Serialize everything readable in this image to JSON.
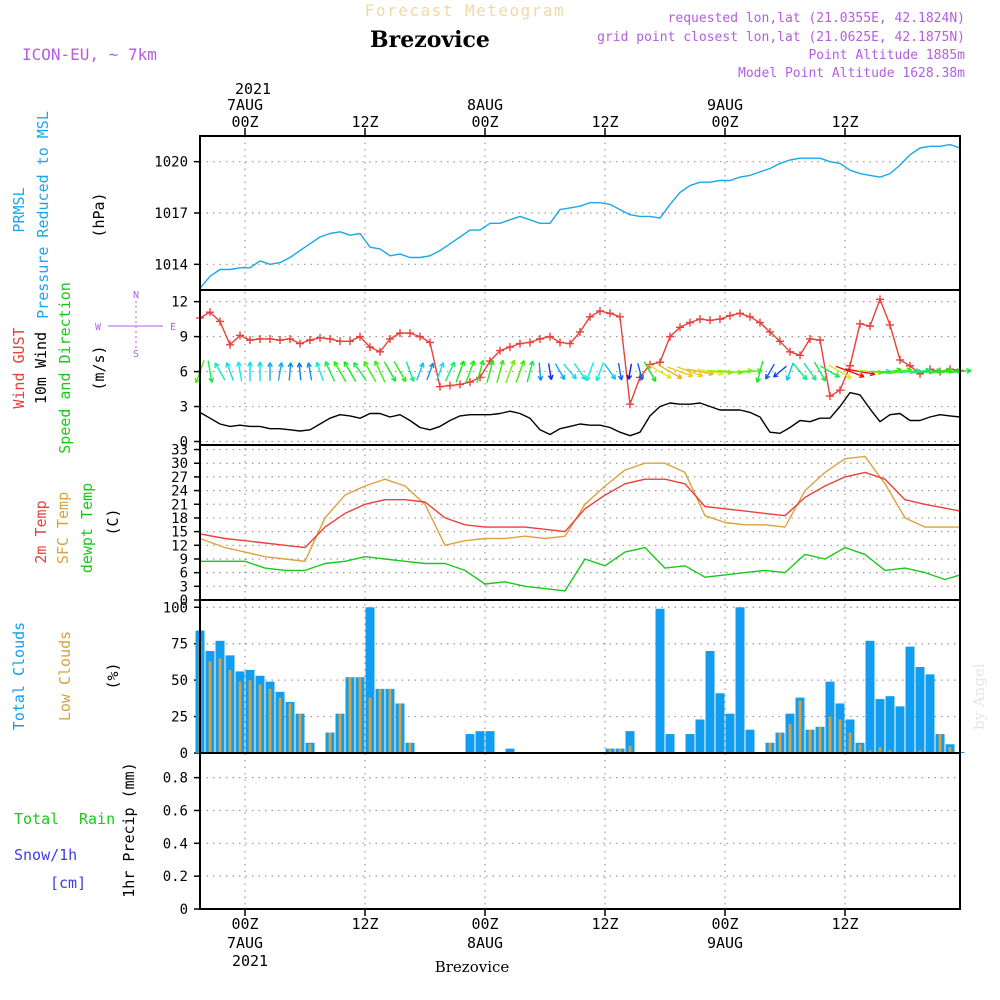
{
  "header": {
    "title": "Forecast Meteogram",
    "station": "Brezovice",
    "model": "ICON-EU, ~ 7km",
    "requested": "requested lon,lat (21.0355E, 42.1824N)",
    "grid_point": "grid point closest lon,lat (21.0625E, 42.1875N)",
    "point_altitude": "Point Altitude 1885m",
    "model_altitude": "Model Point Altitude 1628.38m",
    "footer_station": "Brezovice",
    "watermark": "by Angel",
    "top_year": "2021",
    "bottom_year": "2021"
  },
  "colors": {
    "pressure": "#19a7ea",
    "gust": "#e8413c",
    "wind": "#000000",
    "direction": "#19c919",
    "temp": "#e8413c",
    "sfc": "#dca23c",
    "dew": "#19c919",
    "total_clouds": "#119ef0",
    "low_clouds": "#d8a03e",
    "rain": "#19c919",
    "snow": "#3c3cea",
    "purple": "#b35ee0",
    "grid": "#999999"
  },
  "time_axis": {
    "top_ticks": [
      {
        "t": 0,
        "day": "7AUG",
        "hour": "00Z"
      },
      {
        "t": 12,
        "day": "",
        "hour": "12Z"
      },
      {
        "t": 24,
        "day": "8AUG",
        "hour": "00Z"
      },
      {
        "t": 36,
        "day": "",
        "hour": "12Z"
      },
      {
        "t": 48,
        "day": "9AUG",
        "hour": "00Z"
      },
      {
        "t": 60,
        "day": "",
        "hour": "12Z"
      }
    ],
    "bottom_ticks": [
      {
        "t": 0,
        "hour": "00Z",
        "day": "7AUG"
      },
      {
        "t": 12,
        "hour": "12Z",
        "day": ""
      },
      {
        "t": 24,
        "hour": "00Z",
        "day": "8AUG"
      },
      {
        "t": 36,
        "hour": "12Z",
        "day": ""
      },
      {
        "t": 48,
        "hour": "00Z",
        "day": "9AUG"
      },
      {
        "t": 60,
        "hour": "12Z",
        "day": ""
      }
    ]
  },
  "panels": {
    "pressure": {
      "label1": "PRMSL",
      "label2": "Pressure Reduced to MSL",
      "unit": "(hPa)",
      "ticks": [
        "1014",
        "1017",
        "1020"
      ]
    },
    "wind": {
      "label_gust": "Wind GUST",
      "label_wind": "10m Wind",
      "label_dir": "Speed and Direction",
      "unit": "(m/s)",
      "compass": {
        "n": "N",
        "s": "S",
        "w": "W",
        "e": "E"
      },
      "ticks": [
        "0",
        "3",
        "6",
        "9",
        "12"
      ]
    },
    "temp": {
      "label_temp": "2m Temp",
      "label_sfc": "SFC Temp",
      "label_dew": "dewpt Temp",
      "unit": "(C)",
      "ticks": [
        "0",
        "3",
        "6",
        "9",
        "12",
        "15",
        "18",
        "21",
        "24",
        "27",
        "30",
        "33"
      ]
    },
    "clouds": {
      "label_total": "Total Clouds",
      "label_low": "Low Clouds",
      "unit": "(%)",
      "ticks": [
        "0",
        "25",
        "50",
        "75",
        "100"
      ]
    },
    "precip": {
      "label_total": "Total",
      "label_rain": "Rain",
      "label_snow": "Snow/1h",
      "label_cm": "[cm]",
      "unit": "1hr Precip (mm)",
      "ticks": [
        "0",
        "0.2",
        "0.4",
        "0.6",
        "0.8"
      ]
    }
  },
  "chart_data": {
    "type": "line",
    "time_unit": "hours since 2021-08-07 00Z",
    "xlim": [
      -4.5,
      71.5
    ],
    "title": "Forecast Meteogram",
    "pressure": {
      "name": "PRMSL",
      "ylim": [
        1012.5,
        1021.5
      ],
      "t": [
        -4.5,
        -3.5,
        -2.5,
        -1.5,
        -0.5,
        0.5,
        1.5,
        2.5,
        3.5,
        4.5,
        5.5,
        6.5,
        7.5,
        8.5,
        9.5,
        10.5,
        11.5,
        12.5,
        13.5,
        14.5,
        15.5,
        16.5,
        17.5,
        18.5,
        19.5,
        20.5,
        21.5,
        22.5,
        23.5,
        24.5,
        25.5,
        26.5,
        27.5,
        28.5,
        29.5,
        30.5,
        31.5,
        32.5,
        33.5,
        34.5,
        35.5,
        36.5,
        37.5,
        38.5,
        39.5,
        40.5,
        41.5,
        42.5,
        43.5,
        44.5,
        45.5,
        46.5,
        47.5,
        48.5,
        49.5,
        50.5,
        51.5,
        52.5,
        53.5,
        54.5,
        55.5,
        56.5,
        57.5,
        58.5,
        59.5,
        60.5,
        61.5,
        62.5,
        63.5,
        64.5,
        65.5,
        66.5,
        67.5,
        68.5,
        69.5,
        70.5,
        71.5
      ],
      "values": [
        1012.6,
        1013.3,
        1013.7,
        1013.7,
        1013.8,
        1013.8,
        1014.2,
        1014.0,
        1014.1,
        1014.4,
        1014.8,
        1015.2,
        1015.6,
        1015.8,
        1015.9,
        1015.7,
        1015.8,
        1015.0,
        1014.9,
        1014.5,
        1014.6,
        1014.4,
        1014.4,
        1014.5,
        1014.8,
        1015.2,
        1015.6,
        1016.0,
        1016.0,
        1016.4,
        1016.4,
        1016.6,
        1016.8,
        1016.6,
        1016.4,
        1016.4,
        1017.2,
        1017.3,
        1017.4,
        1017.6,
        1017.6,
        1017.5,
        1017.2,
        1016.9,
        1016.8,
        1016.8,
        1016.7,
        1017.5,
        1018.2,
        1018.6,
        1018.8,
        1018.8,
        1018.9,
        1018.9,
        1019.1,
        1019.2,
        1019.4,
        1019.6,
        1019.9,
        1020.1,
        1020.2,
        1020.2,
        1020.2,
        1020.0,
        1019.9,
        1019.5,
        1019.3,
        1019.2,
        1019.1,
        1019.3,
        1019.8,
        1020.4,
        1020.8,
        1020.9,
        1020.9,
        1021.0,
        1020.8
      ]
    },
    "gust": {
      "name": "Wind GUST",
      "unit": "m/s",
      "ylim": [
        -0.3,
        13
      ],
      "t": [
        -4.5,
        -3.5,
        -2.5,
        -1.5,
        -0.5,
        0.5,
        1.5,
        2.5,
        3.5,
        4.5,
        5.5,
        6.5,
        7.5,
        8.5,
        9.5,
        10.5,
        11.5,
        12.5,
        13.5,
        14.5,
        15.5,
        16.5,
        17.5,
        18.5,
        19.5,
        20.5,
        21.5,
        22.5,
        23.5,
        24.5,
        25.5,
        26.5,
        27.5,
        28.5,
        29.5,
        30.5,
        31.5,
        32.5,
        33.5,
        34.5,
        35.5,
        36.5,
        37.5,
        38.5,
        39.5,
        40.5,
        41.5,
        42.5,
        43.5,
        44.5,
        45.5,
        46.5,
        47.5,
        48.5,
        49.5,
        50.5,
        51.5,
        52.5,
        53.5,
        54.5,
        55.5,
        56.5,
        57.5,
        58.5,
        59.5,
        60.5,
        61.5,
        62.5,
        63.5,
        64.5,
        65.5,
        66.5,
        67.5,
        68.5,
        69.5,
        70.5,
        71.5
      ],
      "values": [
        10.6,
        11.1,
        10.3,
        8.3,
        9.1,
        8.7,
        8.8,
        8.8,
        8.7,
        8.8,
        8.4,
        8.7,
        8.9,
        8.8,
        8.6,
        8.6,
        9.0,
        8.1,
        7.7,
        8.8,
        9.3,
        9.3,
        9.0,
        8.5,
        4.7,
        4.8,
        4.9,
        5.1,
        5.5,
        6.9,
        7.8,
        8.1,
        8.4,
        8.5,
        8.8,
        9.0,
        8.5,
        8.4,
        9.4,
        10.7,
        11.2,
        11.0,
        10.7,
        3.2,
        5.5,
        6.6,
        6.8,
        9.0,
        9.8,
        10.2,
        10.5,
        10.4,
        10.5,
        10.8,
        11.0,
        10.7,
        10.2,
        9.4,
        8.6,
        7.7,
        7.4,
        8.8,
        8.7,
        3.9,
        4.4,
        6.5,
        10.1,
        9.9,
        12.2,
        10.0,
        7.0,
        6.5,
        5.8,
        6.2,
        6.0,
        6.2,
        6.1
      ]
    },
    "wind_speed": {
      "name": "10m Wind",
      "unit": "m/s",
      "t": [
        -4.5,
        -3.5,
        -2.5,
        -1.5,
        -0.5,
        0.5,
        1.5,
        2.5,
        3.5,
        4.5,
        5.5,
        6.5,
        7.5,
        8.5,
        9.5,
        10.5,
        11.5,
        12.5,
        13.5,
        14.5,
        15.5,
        16.5,
        17.5,
        18.5,
        19.5,
        20.5,
        21.5,
        22.5,
        23.5,
        24.5,
        25.5,
        26.5,
        27.5,
        28.5,
        29.5,
        30.5,
        31.5,
        32.5,
        33.5,
        34.5,
        35.5,
        36.5,
        37.5,
        38.5,
        39.5,
        40.5,
        41.5,
        42.5,
        43.5,
        44.5,
        45.5,
        46.5,
        47.5,
        48.5,
        49.5,
        50.5,
        51.5,
        52.5,
        53.5,
        54.5,
        55.5,
        56.5,
        57.5,
        58.5,
        59.5,
        60.5,
        61.5,
        62.5,
        63.5,
        64.5,
        65.5,
        66.5,
        67.5,
        68.5,
        69.5,
        70.5,
        71.5
      ],
      "values": [
        2.5,
        2.0,
        1.5,
        1.3,
        1.4,
        1.3,
        1.3,
        1.1,
        1.1,
        1.0,
        0.9,
        1.0,
        1.5,
        2.0,
        2.3,
        2.2,
        2.0,
        2.4,
        2.4,
        2.1,
        2.3,
        1.8,
        1.2,
        1.0,
        1.3,
        1.8,
        2.2,
        2.3,
        2.3,
        2.3,
        2.4,
        2.6,
        2.4,
        2.0,
        1.0,
        0.6,
        1.1,
        1.3,
        1.5,
        1.4,
        1.4,
        1.2,
        0.8,
        0.5,
        0.8,
        2.2,
        3.0,
        3.3,
        3.2,
        3.2,
        3.3,
        3.0,
        2.7,
        2.7,
        2.7,
        2.5,
        2.1,
        0.8,
        0.7,
        1.2,
        1.8,
        1.7,
        2.0,
        2.0,
        3.0,
        4.2,
        4.0,
        2.8,
        1.7,
        2.3,
        2.4,
        1.8,
        1.8,
        2.1,
        2.3,
        2.2,
        2.1
      ]
    },
    "wind_direction": {
      "name": "Speed and Direction",
      "arrow_dirs_deg_toward": [
        200,
        170,
        330,
        340,
        350,
        0,
        0,
        0,
        10,
        5,
        355,
        350,
        340,
        335,
        330,
        330,
        325,
        330,
        335,
        150,
        150,
        160,
        20,
        20,
        20,
        25,
        20,
        20,
        15,
        15,
        15,
        20,
        20,
        15,
        175,
        170,
        150,
        140,
        145,
        200,
        200,
        145,
        170,
        190,
        165,
        150,
        120,
        120,
        110,
        110,
        100,
        100,
        95,
        95,
        85,
        85,
        195,
        210,
        230,
        200,
        140,
        145,
        150,
        120,
        120,
        110,
        100,
        95,
        90,
        80,
        80,
        85,
        80,
        85,
        80,
        85,
        85
      ]
    },
    "temp_2m": {
      "name": "2m Temp",
      "unit": "C",
      "ylim": [
        0,
        34
      ],
      "t": [
        -4.5,
        -2,
        0,
        2,
        4,
        6,
        8,
        10,
        12,
        14,
        16,
        18,
        20,
        22,
        24,
        26,
        28,
        30,
        32,
        34,
        36,
        38,
        40,
        42,
        44,
        46,
        48,
        50,
        52,
        54,
        56,
        58,
        60,
        62,
        64,
        66,
        68,
        71.5
      ],
      "values": [
        14.5,
        13.5,
        13,
        12.5,
        12,
        11.5,
        16,
        19,
        21,
        22,
        22,
        21.5,
        18,
        16.5,
        16,
        16,
        16,
        15.5,
        15,
        20,
        23,
        25.5,
        26.5,
        26.5,
        25.5,
        20.5,
        20,
        19.5,
        19,
        18.5,
        22.5,
        25,
        27,
        28,
        26.5,
        22,
        21,
        19.5
      ]
    },
    "temp_sfc": {
      "name": "SFC Temp",
      "unit": "C",
      "t": [
        -4.5,
        -2,
        0,
        2,
        4,
        6,
        8,
        10,
        12,
        14,
        16,
        18,
        20,
        22,
        24,
        26,
        28,
        30,
        32,
        34,
        36,
        38,
        40,
        42,
        44,
        46,
        48,
        50,
        52,
        54,
        56,
        58,
        60,
        62,
        64,
        66,
        68,
        71.5
      ],
      "values": [
        13.5,
        11.5,
        10.5,
        9.5,
        9,
        8.5,
        18,
        23,
        25,
        26.5,
        25,
        21,
        12,
        13,
        13.5,
        13.5,
        14,
        13.5,
        14,
        21,
        25,
        28.5,
        30,
        30,
        28,
        18.5,
        17,
        16.5,
        16.5,
        16,
        24,
        28,
        31,
        31.5,
        25.5,
        18,
        16,
        16
      ]
    },
    "dewpoint": {
      "name": "dewpt Temp",
      "unit": "C",
      "t": [
        -4.5,
        -2,
        0,
        2,
        4,
        6,
        8,
        10,
        12,
        14,
        16,
        18,
        20,
        22,
        24,
        26,
        28,
        30,
        32,
        34,
        36,
        38,
        40,
        42,
        44,
        46,
        48,
        50,
        52,
        54,
        56,
        58,
        60,
        62,
        64,
        66,
        68,
        70,
        71.5
      ],
      "values": [
        8.5,
        8.5,
        8.5,
        7,
        6.5,
        6.5,
        8,
        8.5,
        9.5,
        9,
        8.5,
        8,
        8,
        6.5,
        3.5,
        4,
        3,
        2.5,
        2,
        9,
        7.5,
        10.5,
        11.5,
        7,
        7.5,
        5,
        5.5,
        6,
        6.5,
        6,
        10,
        9,
        11.5,
        10,
        6.5,
        7,
        6,
        4.5,
        5.5
      ]
    },
    "total_clouds": {
      "name": "Total Clouds",
      "unit": "%",
      "ylim": [
        0,
        105
      ],
      "t": [
        -4.5,
        -3.5,
        -2.5,
        -1.5,
        -0.5,
        0.5,
        1.5,
        2.5,
        3.5,
        4.5,
        5.5,
        6.5,
        7.5,
        8.5,
        9.5,
        10.5,
        11.5,
        12.5,
        13.5,
        14.5,
        15.5,
        16.5,
        17.5,
        18.5,
        19.5,
        20.5,
        21.5,
        22.5,
        23.5,
        24.5,
        25.5,
        26.5,
        27.5,
        28.5,
        29.5,
        30.5,
        31.5,
        32.5,
        33.5,
        34.5,
        35.5,
        36.5,
        37.5,
        38.5,
        39.5,
        40.5,
        41.5,
        42.5,
        43.5,
        44.5,
        45.5,
        46.5,
        47.5,
        48.5,
        49.5,
        50.5,
        51.5,
        52.5,
        53.5,
        54.5,
        55.5,
        56.5,
        57.5,
        58.5,
        59.5,
        60.5,
        61.5,
        62.5,
        63.5,
        64.5,
        65.5,
        66.5,
        67.5,
        68.5,
        69.5,
        70.5,
        71.5
      ],
      "values": [
        84,
        70,
        77,
        67,
        56,
        57,
        53,
        49,
        42,
        35,
        27,
        7,
        0,
        14,
        27,
        52,
        52,
        100,
        44,
        44,
        34,
        7,
        0,
        0,
        0,
        0,
        0,
        13,
        15,
        15,
        0,
        3,
        0,
        0,
        0,
        0,
        0,
        0,
        0,
        0,
        0,
        3,
        3,
        15,
        0,
        0,
        99,
        13,
        0,
        13,
        23,
        70,
        41,
        27,
        100,
        16,
        0,
        7,
        14,
        27,
        38,
        16,
        18,
        49,
        34,
        23,
        7,
        77,
        37,
        39,
        32,
        73,
        59,
        54,
        13,
        6,
        0
      ]
    },
    "low_clouds": {
      "name": "Low Clouds",
      "unit": "%",
      "values": [
        77,
        63,
        65,
        57,
        49,
        50,
        47,
        44,
        38,
        34,
        27,
        6,
        0,
        14,
        27,
        52,
        52,
        38,
        44,
        44,
        34,
        7,
        0,
        0,
        0,
        0,
        0,
        0,
        0,
        0,
        0,
        0,
        0,
        0,
        0,
        0,
        0,
        0,
        0,
        0,
        0,
        3,
        3,
        5,
        0,
        0,
        0,
        0,
        0,
        0,
        0,
        0,
        0,
        0,
        0,
        0,
        0,
        7,
        14,
        20,
        36,
        16,
        18,
        25,
        23,
        14,
        6,
        2,
        4,
        2,
        0,
        0,
        2,
        0,
        13,
        4,
        0
      ]
    },
    "precip": {
      "name": "1hr Precip",
      "unit": "mm",
      "ylim": [
        0,
        0.95
      ],
      "total_rain": 0,
      "snow_cm": 0
    }
  }
}
